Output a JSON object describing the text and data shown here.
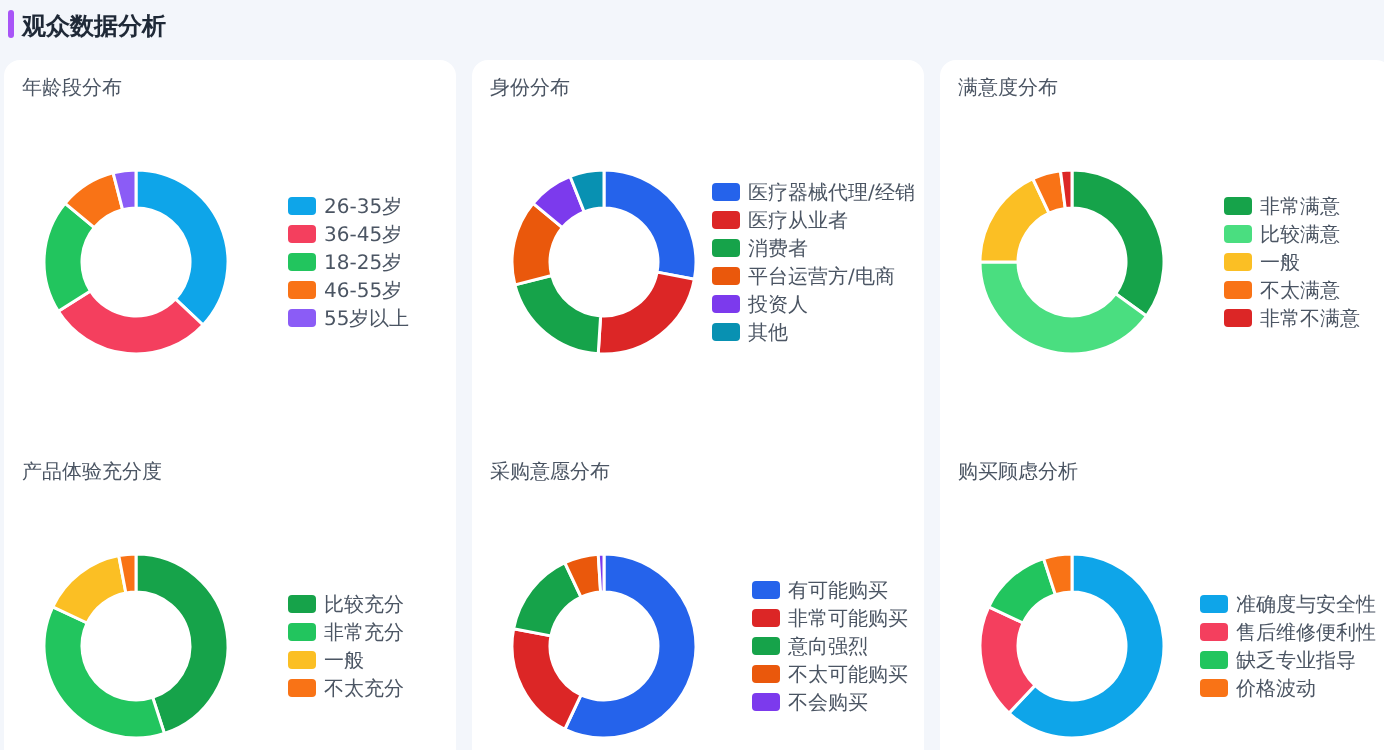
{
  "chart_data": [
    {
      "type": "other",
      "title": "观众数据分析"
    },
    {
      "type": "donut",
      "title": "年龄段分布",
      "legend": "right",
      "categories": [
        "26-35岁",
        "36-45岁",
        "18-25岁",
        "46-55岁",
        "55岁以上"
      ],
      "values": [
        37,
        29,
        20,
        10,
        4
      ],
      "colors": [
        "#0ea5e9",
        "#f43f5e",
        "#22c55e",
        "#f97316",
        "#8b5cf6"
      ]
    },
    {
      "type": "donut",
      "title": "身份分布",
      "legend": "right",
      "categories": [
        "医疗器械代理/经销",
        "医疗从业者",
        "消费者",
        "平台运营方/电商",
        "投资人",
        "其他"
      ],
      "values": [
        28,
        23,
        20,
        15,
        8,
        6
      ],
      "colors": [
        "#2563eb",
        "#dc2626",
        "#16a34a",
        "#ea580c",
        "#7c3aed",
        "#0891b2"
      ]
    },
    {
      "type": "donut",
      "title": "满意度分布",
      "legend": "right",
      "categories": [
        "非常满意",
        "比较满意",
        "一般",
        "不太满意",
        "非常不满意"
      ],
      "values": [
        35,
        40,
        18,
        5,
        2
      ],
      "colors": [
        "#16a34a",
        "#4ade80",
        "#fbbf24",
        "#f97316",
        "#dc2626"
      ]
    },
    {
      "type": "donut",
      "title": "产品体验充分度",
      "legend": "right",
      "categories": [
        "比较充分",
        "非常充分",
        "一般",
        "不太充分"
      ],
      "values": [
        45,
        37,
        15,
        3
      ],
      "colors": [
        "#16a34a",
        "#22c55e",
        "#fbbf24",
        "#f97316"
      ]
    },
    {
      "type": "donut",
      "title": "采购意愿分布",
      "legend": "right",
      "categories": [
        "有可能购买",
        "非常可能购买",
        "意向强烈",
        "不太可能购买",
        "不会购买"
      ],
      "values": [
        57,
        21,
        15,
        6,
        1
      ],
      "colors": [
        "#2563eb",
        "#dc2626",
        "#16a34a",
        "#ea580c",
        "#7c3aed"
      ]
    },
    {
      "type": "donut",
      "title": "购买顾虑分析",
      "legend": "right",
      "categories": [
        "准确度与安全性",
        "售后维修便利性",
        "缺乏专业指导",
        "价格波动"
      ],
      "values": [
        62,
        20,
        13,
        5
      ],
      "colors": [
        "#0ea5e9",
        "#f43f5e",
        "#22c55e",
        "#f97316"
      ]
    }
  ]
}
